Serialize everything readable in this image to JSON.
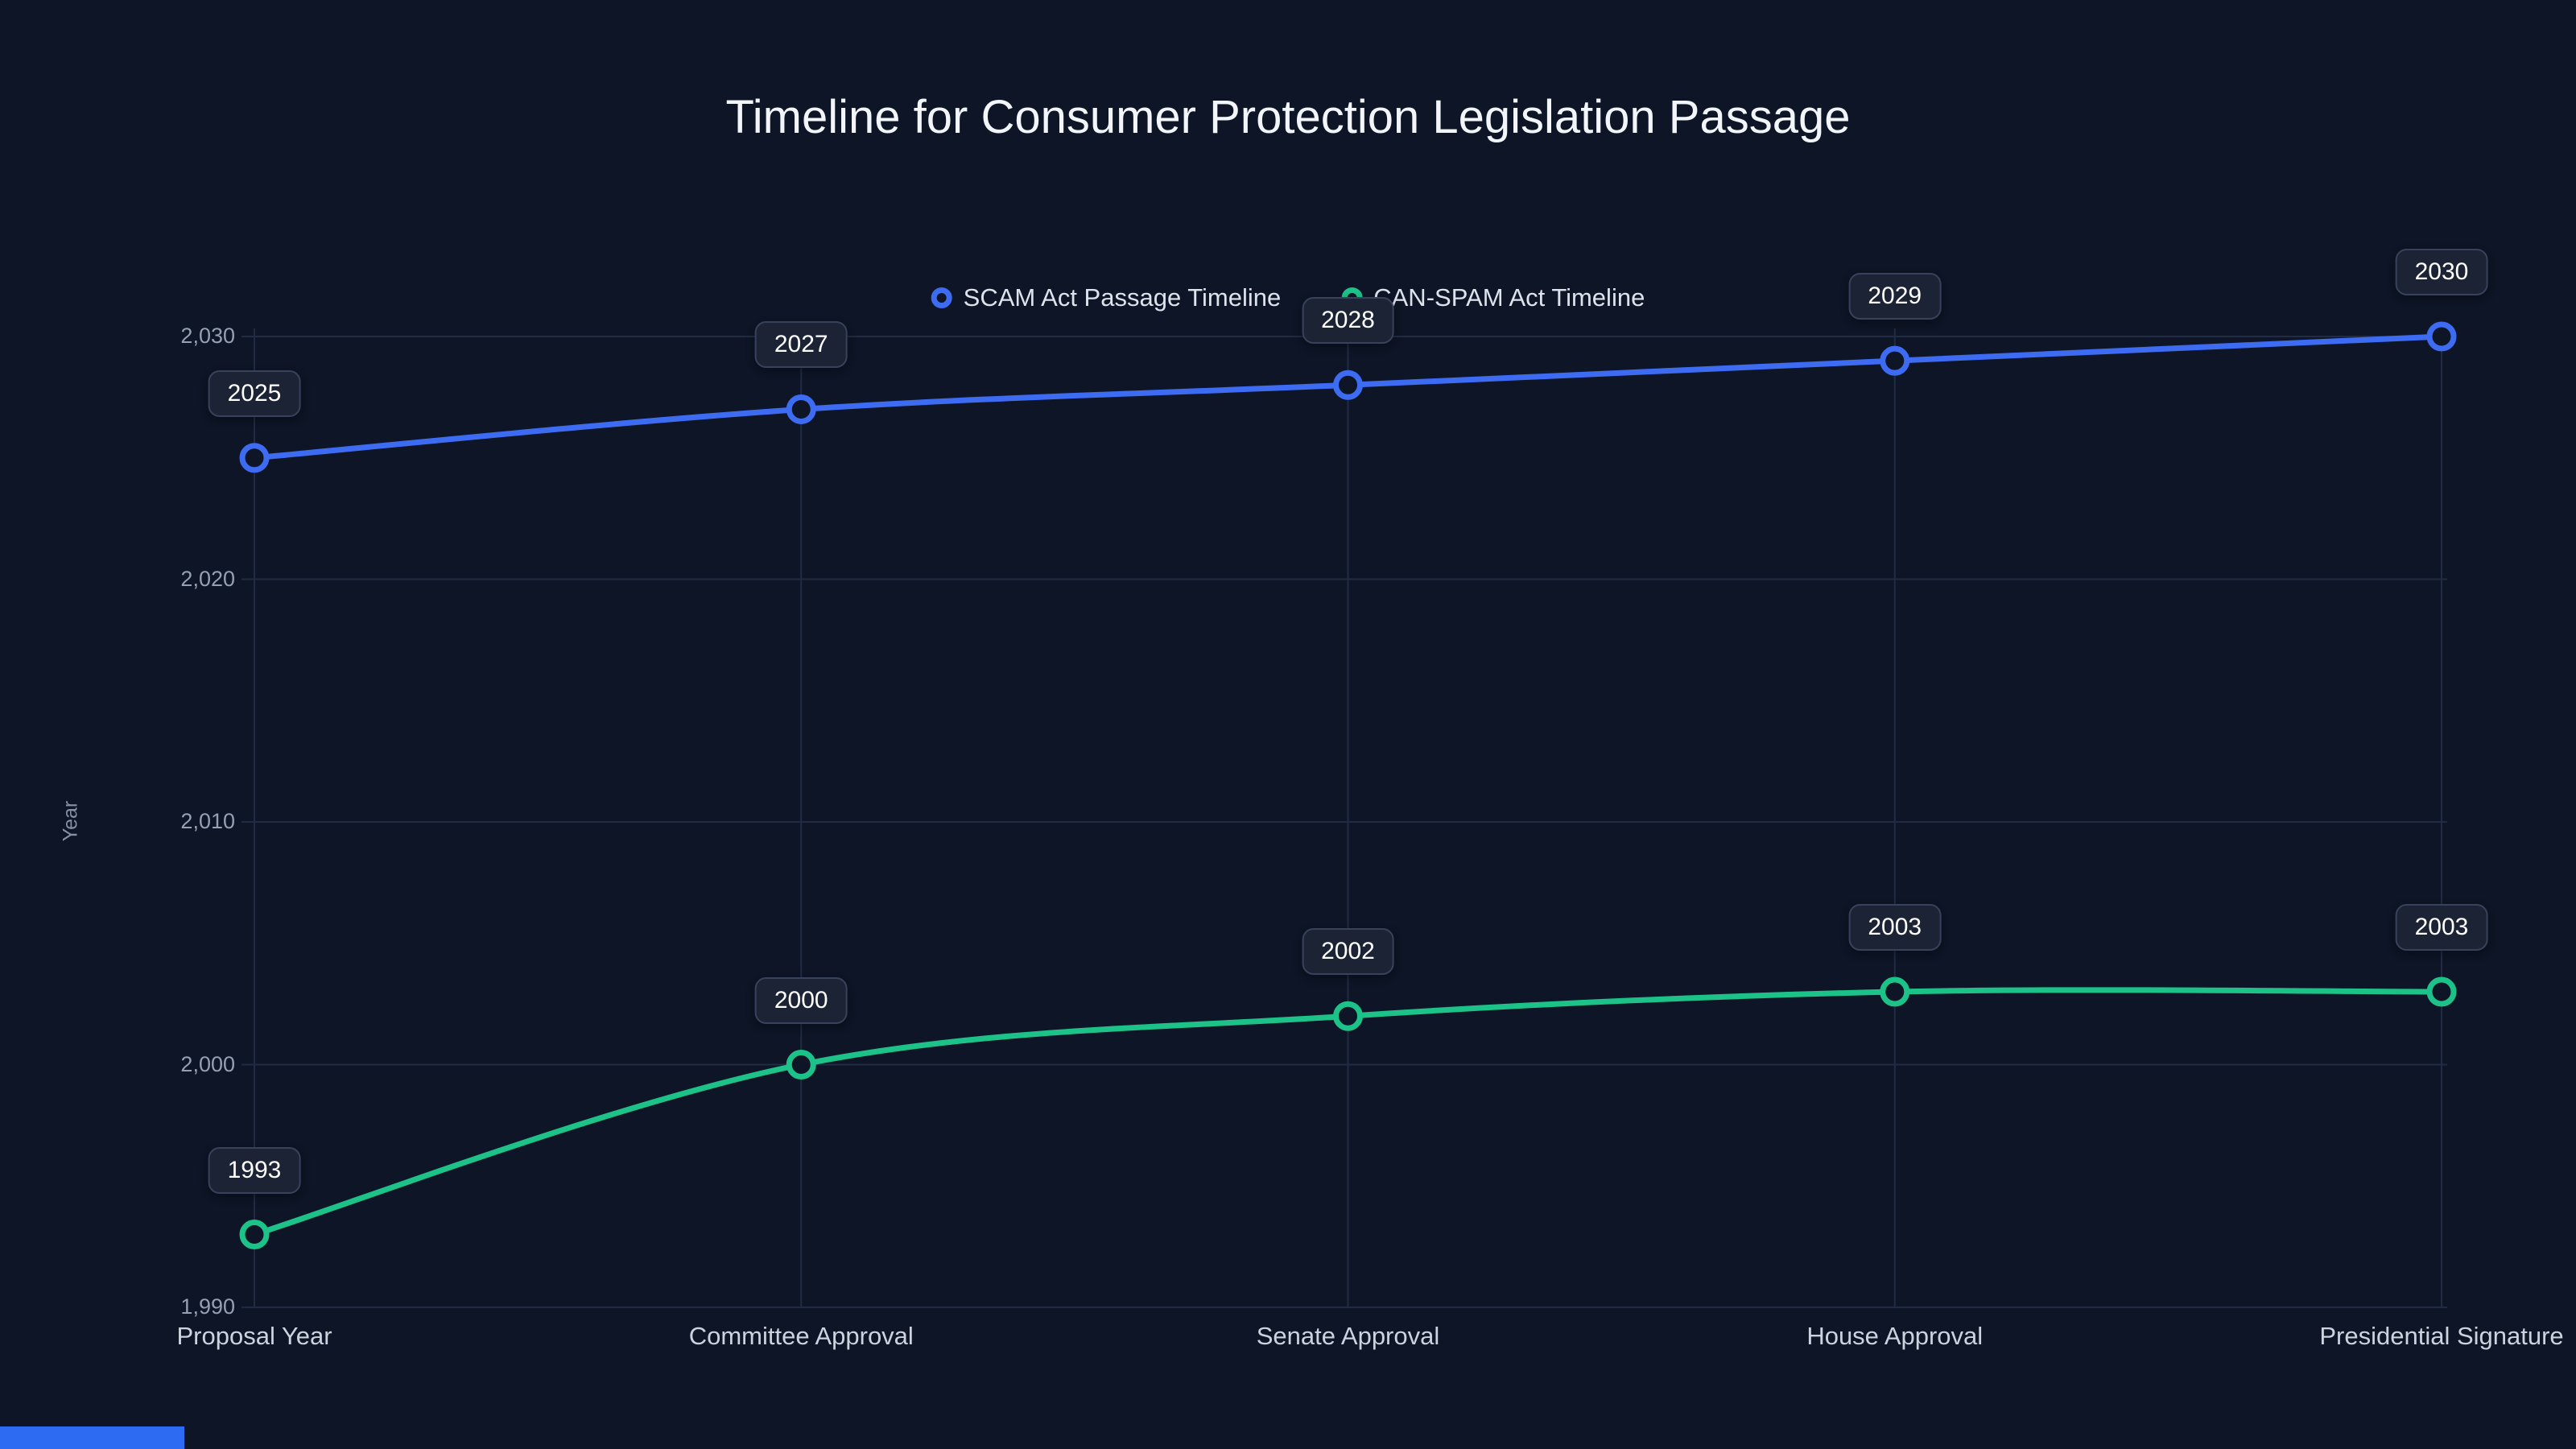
{
  "colors": {
    "background": "#0d1526",
    "grid": "#212c44",
    "series_blue": "#3d6cf2",
    "series_green": "#1cc288",
    "label_box_bg": "#1b2335",
    "label_box_border": "#39425c",
    "tick_text": "#96a0b4",
    "category_text": "#ccd2de",
    "title_text": "#f2f5f9",
    "accent_bar": "#2e6bf3"
  },
  "chart_data": {
    "type": "line",
    "title": "Timeline for Consumer Protection Legislation Passage",
    "categories": [
      "Proposal Year",
      "Committee Approval",
      "Senate Approval",
      "House Approval",
      "Presidential Signature"
    ],
    "series": [
      {
        "name": "SCAM Act Passage Timeline",
        "color": "#3d6cf2",
        "values": [
          2025,
          2027,
          2028,
          2029,
          2030
        ],
        "point_labels": [
          "2025",
          "2027",
          "2028",
          "2029",
          "2030"
        ]
      },
      {
        "name": "CAN-SPAM Act Timeline",
        "color": "#1cc288",
        "values": [
          1993,
          2000,
          2002,
          2003,
          2003
        ],
        "point_labels": [
          "1993",
          "2000",
          "2002",
          "2003",
          "2003"
        ]
      }
    ],
    "xlabel": "",
    "ylabel": "Year",
    "yticks": [
      1990,
      2000,
      2010,
      2020,
      2030
    ],
    "ytick_labels": [
      "1,990",
      "2,000",
      "2,010",
      "2,020",
      "2,030"
    ],
    "ylim": [
      1990,
      2032
    ],
    "grid": true,
    "legend_position": "top-center"
  }
}
